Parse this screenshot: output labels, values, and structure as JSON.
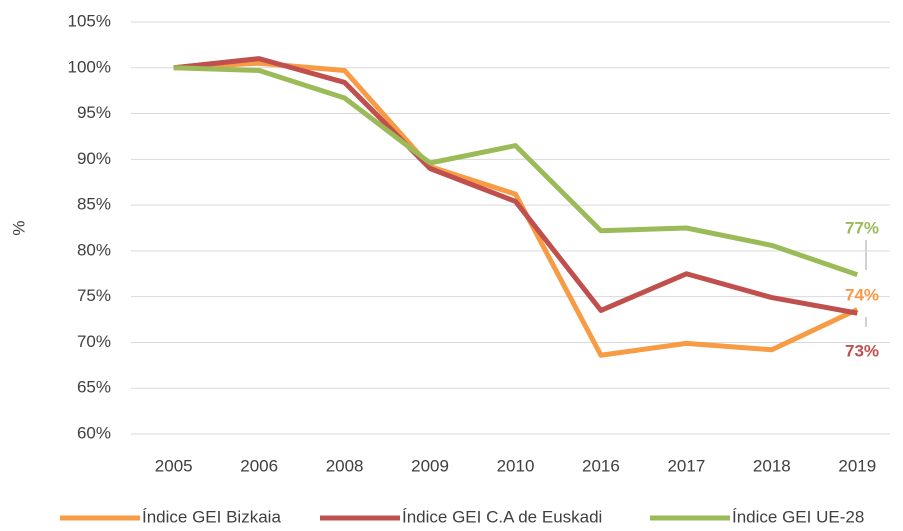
{
  "chart_data": {
    "type": "line",
    "y_label": "%",
    "categories": [
      "2005",
      "2006",
      "2008",
      "2009",
      "2010",
      "2016",
      "2017",
      "2018",
      "2019"
    ],
    "series": [
      {
        "name": "Índice GEI Bizkaia",
        "color": "#f79b45",
        "values": [
          100,
          100.5,
          99.7,
          89.2,
          86.2,
          68.6,
          69.9,
          69.2,
          73.6
        ],
        "value_labels": [
          null,
          null,
          null,
          null,
          null,
          null,
          null,
          null,
          "74%"
        ]
      },
      {
        "name": "Índice GEI C.A de Euskadi",
        "color": "#c0504d",
        "values": [
          100,
          101,
          98.4,
          89.0,
          85.4,
          73.5,
          77.5,
          74.9,
          73.2
        ],
        "value_labels": [
          null,
          null,
          null,
          null,
          null,
          null,
          null,
          null,
          "73%"
        ]
      },
      {
        "name": "Índice GEI UE-28",
        "color": "#9bbb59",
        "values": [
          100,
          99.7,
          96.7,
          89.6,
          91.5,
          82.2,
          82.5,
          80.6,
          77.4
        ],
        "value_labels": [
          null,
          null,
          null,
          null,
          null,
          null,
          null,
          null,
          "77%"
        ]
      }
    ],
    "ylim": [
      60,
      105
    ],
    "yticks": [
      {
        "value": 60,
        "label": "60%"
      },
      {
        "value": 65,
        "label": "65%"
      },
      {
        "value": 70,
        "label": "70%"
      },
      {
        "value": 75,
        "label": "75%"
      },
      {
        "value": 80,
        "label": "80%"
      },
      {
        "value": 85,
        "label": "85%"
      },
      {
        "value": 90,
        "label": "90%"
      },
      {
        "value": 95,
        "label": "95%"
      },
      {
        "value": 100,
        "label": "100%"
      },
      {
        "value": 105,
        "label": "105%"
      }
    ],
    "grid": true,
    "legend": "bottom"
  }
}
